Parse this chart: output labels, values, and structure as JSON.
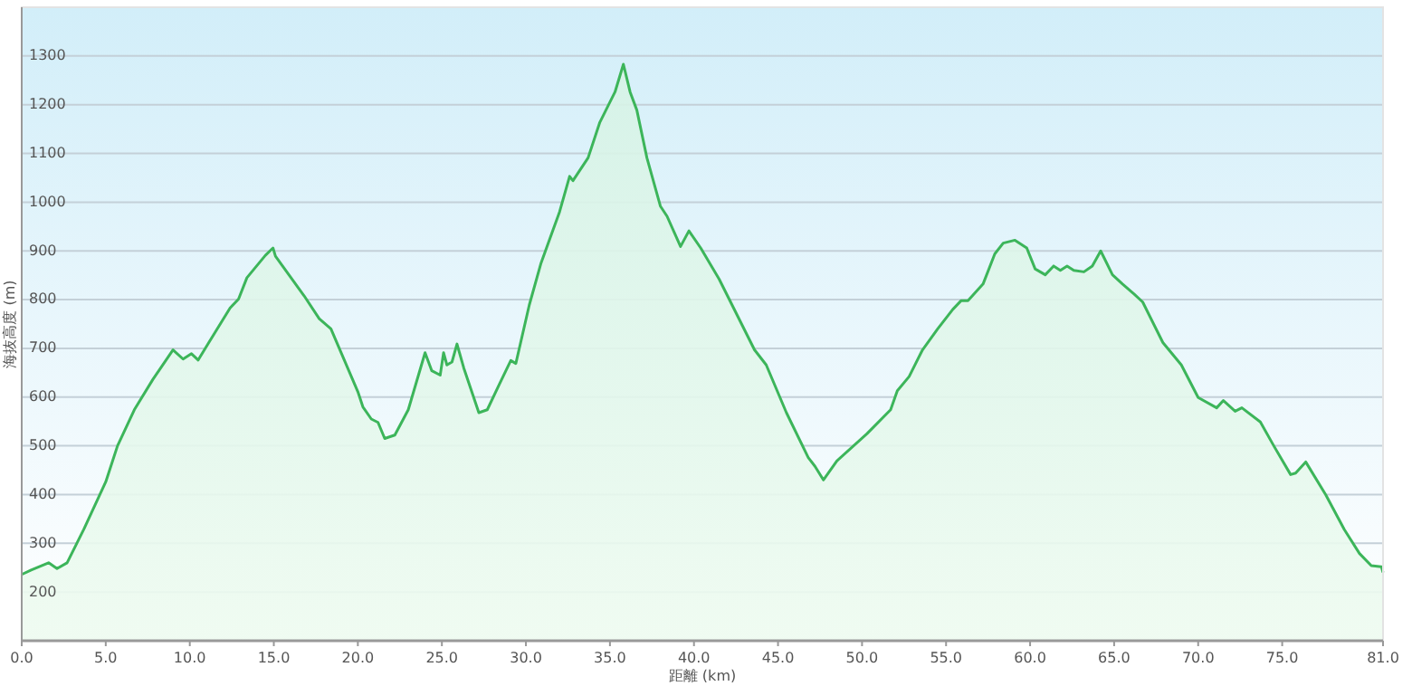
{
  "chart_data": {
    "type": "area",
    "xlabel": "距離 (km)",
    "ylabel": "海抜高度 (m)",
    "x": [
      0,
      0.56,
      1.6,
      2.1,
      2.7,
      3.7,
      5.0,
      5.7,
      6.7,
      7.8,
      9.0,
      9.6,
      10.1,
      10.5,
      11.1,
      12.4,
      12.9,
      13.4,
      14.5,
      14.95,
      15.1,
      16.8,
      17.7,
      18.4,
      20.0,
      20.3,
      20.8,
      21.2,
      21.6,
      22.2,
      23.0,
      24.0,
      24.4,
      24.9,
      25.1,
      25.3,
      25.6,
      25.9,
      26.3,
      27.2,
      27.7,
      28.4,
      29.1,
      29.4,
      30.2,
      30.9,
      32.0,
      32.6,
      32.8,
      33.7,
      34.4,
      35.3,
      35.8,
      36.2,
      36.6,
      37.2,
      38.0,
      38.4,
      39.2,
      39.7,
      40.4,
      41.5,
      43.6,
      44.3,
      45.5,
      46.8,
      47.2,
      47.7,
      48.5,
      50.3,
      51.7,
      52.1,
      52.8,
      53.6,
      54.5,
      55.4,
      55.9,
      56.3,
      57.2,
      57.9,
      58.4,
      59.1,
      59.8,
      60.3,
      60.9,
      61.4,
      61.8,
      62.2,
      62.6,
      63.2,
      63.7,
      64.2,
      64.9,
      65.5,
      66.2,
      66.7,
      67.9,
      69.0,
      70.0,
      71.1,
      71.5,
      72.2,
      72.6,
      73.7,
      74.5,
      75.5,
      75.8,
      76.4,
      77.6,
      78.7,
      79.6,
      80.3,
      80.9,
      81
    ],
    "series": [
      {
        "color": "#3cb55a",
        "values": [
          236,
          245,
          260,
          248,
          260,
          329,
          426,
          500,
          574,
          636,
          697,
          678,
          689,
          676,
          710,
          783,
          801,
          845,
          891,
          906,
          889,
          808,
          761,
          740,
          611,
          580,
          555,
          548,
          515,
          522,
          574,
          691,
          654,
          645,
          691,
          666,
          672,
          709,
          660,
          568,
          574,
          625,
          675,
          669,
          789,
          875,
          980,
          1053,
          1044,
          1091,
          1164,
          1226,
          1283,
          1226,
          1189,
          1091,
          992,
          971,
          909,
          941,
          906,
          842,
          697,
          666,
          568,
          476,
          458,
          430,
          469,
          525,
          574,
          613,
          642,
          697,
          740,
          780,
          798,
          798,
          832,
          894,
          916,
          922,
          906,
          863,
          851,
          869,
          860,
          869,
          860,
          857,
          869,
          900,
          851,
          832,
          811,
          795,
          712,
          666,
          599,
          578,
          593,
          571,
          578,
          549,
          500,
          441,
          444,
          467,
          399,
          328,
          279,
          254,
          252,
          240
        ]
      }
    ],
    "xlim": [
      0,
      81
    ],
    "ylim": [
      100,
      1400
    ],
    "xticks": [
      {
        "value": 0,
        "label": "0.0"
      },
      {
        "value": 5,
        "label": "5.0"
      },
      {
        "value": 10,
        "label": "10.0"
      },
      {
        "value": 15,
        "label": "15.0"
      },
      {
        "value": 20,
        "label": "20.0"
      },
      {
        "value": 25,
        "label": "25.0"
      },
      {
        "value": 30,
        "label": "30.0"
      },
      {
        "value": 35,
        "label": "35.0"
      },
      {
        "value": 40,
        "label": "40.0"
      },
      {
        "value": 45,
        "label": "45.0"
      },
      {
        "value": 50,
        "label": "50.0"
      },
      {
        "value": 55,
        "label": "55.0"
      },
      {
        "value": 60,
        "label": "60.0"
      },
      {
        "value": 65,
        "label": "65.0"
      },
      {
        "value": 70,
        "label": "70.0"
      },
      {
        "value": 75,
        "label": "75.0"
      },
      {
        "value": 81,
        "label": "81.0"
      }
    ],
    "yticks": [
      200,
      300,
      400,
      500,
      600,
      700,
      800,
      900,
      1000,
      1100,
      1200,
      1300
    ],
    "grid": "y"
  }
}
